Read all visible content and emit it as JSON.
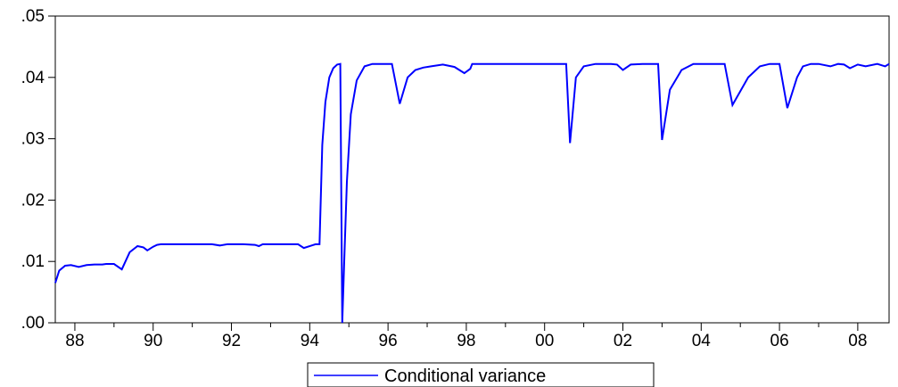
{
  "chart_data": {
    "type": "line",
    "title": "",
    "xlabel": "",
    "ylabel": "",
    "xlim": [
      1987.5,
      2008.8
    ],
    "ylim": [
      0,
      0.05
    ],
    "y_ticks": [
      0.0,
      0.01,
      0.02,
      0.03,
      0.04,
      0.05
    ],
    "y_tick_labels": [
      ".00",
      ".01",
      ".02",
      ".03",
      ".04",
      ".05"
    ],
    "x_major_ticks": [
      1988,
      1990,
      1992,
      1994,
      1996,
      1998,
      2000,
      2002,
      2004,
      2006,
      2008
    ],
    "x_tick_labels": [
      "88",
      "90",
      "92",
      "94",
      "96",
      "98",
      "00",
      "02",
      "04",
      "06",
      "08"
    ],
    "x_minor_ticks": [
      1989,
      1991,
      1993,
      1995,
      1997,
      1999,
      2001,
      2003,
      2005,
      2007
    ],
    "grid": false,
    "legend": "bottom-center",
    "line_color": "#0000ff",
    "series": [
      {
        "name": "Conditional variance",
        "x": [
          1987.5,
          1987.6,
          1987.75,
          1987.9,
          1988.1,
          1988.3,
          1988.5,
          1988.7,
          1988.8,
          1989.0,
          1989.2,
          1989.4,
          1989.6,
          1989.75,
          1989.85,
          1990.0,
          1990.1,
          1990.2,
          1990.4,
          1990.6,
          1991.0,
          1991.5,
          1991.7,
          1991.9,
          1992.3,
          1992.6,
          1992.7,
          1992.8,
          1993.0,
          1993.3,
          1993.55,
          1993.7,
          1993.85,
          1994.05,
          1994.15,
          1994.25,
          1994.32,
          1994.4,
          1994.5,
          1994.6,
          1994.7,
          1994.78,
          1994.83,
          1994.88,
          1994.95,
          1995.05,
          1995.2,
          1995.4,
          1995.6,
          1995.8,
          1996.1,
          1996.3,
          1996.5,
          1996.7,
          1996.9,
          1997.1,
          1997.4,
          1997.7,
          1997.95,
          1998.1,
          1998.15,
          1998.3,
          1998.5,
          1998.8,
          1999.2,
          1999.6,
          1999.7,
          1999.8,
          2000.0,
          2000.2,
          2000.4,
          2000.55,
          2000.65,
          2000.8,
          2001.0,
          2001.3,
          2001.55,
          2001.7,
          2001.85,
          2002.0,
          2002.2,
          2002.5,
          2002.75,
          2002.9,
          2003.0,
          2003.2,
          2003.5,
          2003.8,
          2004.0,
          2004.3,
          2004.6,
          2004.8,
          2005.2,
          2005.5,
          2005.75,
          2005.85,
          2006.0,
          2006.2,
          2006.45,
          2006.6,
          2006.8,
          2007.0,
          2007.3,
          2007.5,
          2007.65,
          2007.8,
          2008.0,
          2008.2,
          2008.5,
          2008.7,
          2008.8
        ],
        "y": [
          0.0065,
          0.0085,
          0.0093,
          0.0094,
          0.0091,
          0.0094,
          0.0095,
          0.0095,
          0.0096,
          0.0096,
          0.0087,
          0.0115,
          0.0125,
          0.0123,
          0.0118,
          0.0124,
          0.0127,
          0.0128,
          0.0128,
          0.0128,
          0.0128,
          0.0128,
          0.0126,
          0.0128,
          0.0128,
          0.0127,
          0.0125,
          0.0128,
          0.0128,
          0.0128,
          0.0128,
          0.0128,
          0.0122,
          0.0126,
          0.0128,
          0.0128,
          0.029,
          0.036,
          0.04,
          0.0415,
          0.0421,
          0.0422,
          0.0,
          0.01,
          0.023,
          0.034,
          0.0395,
          0.0418,
          0.0422,
          0.0422,
          0.0422,
          0.0357,
          0.04,
          0.0412,
          0.0416,
          0.0418,
          0.0421,
          0.0417,
          0.0407,
          0.0414,
          0.0422,
          0.0422,
          0.0422,
          0.0422,
          0.0422,
          0.0422,
          0.0422,
          0.0422,
          0.0422,
          0.0422,
          0.0422,
          0.0422,
          0.0293,
          0.04,
          0.0418,
          0.0422,
          0.0422,
          0.0422,
          0.0421,
          0.0412,
          0.0421,
          0.0422,
          0.0422,
          0.0422,
          0.0298,
          0.038,
          0.0412,
          0.0422,
          0.0422,
          0.0422,
          0.0422,
          0.0355,
          0.04,
          0.0418,
          0.0422,
          0.0422,
          0.0422,
          0.035,
          0.04,
          0.0418,
          0.0422,
          0.0422,
          0.0418,
          0.0422,
          0.0421,
          0.0415,
          0.0421,
          0.0418,
          0.0422,
          0.0418,
          0.0422
        ]
      }
    ],
    "legend_entries": [
      "Conditional variance"
    ]
  }
}
